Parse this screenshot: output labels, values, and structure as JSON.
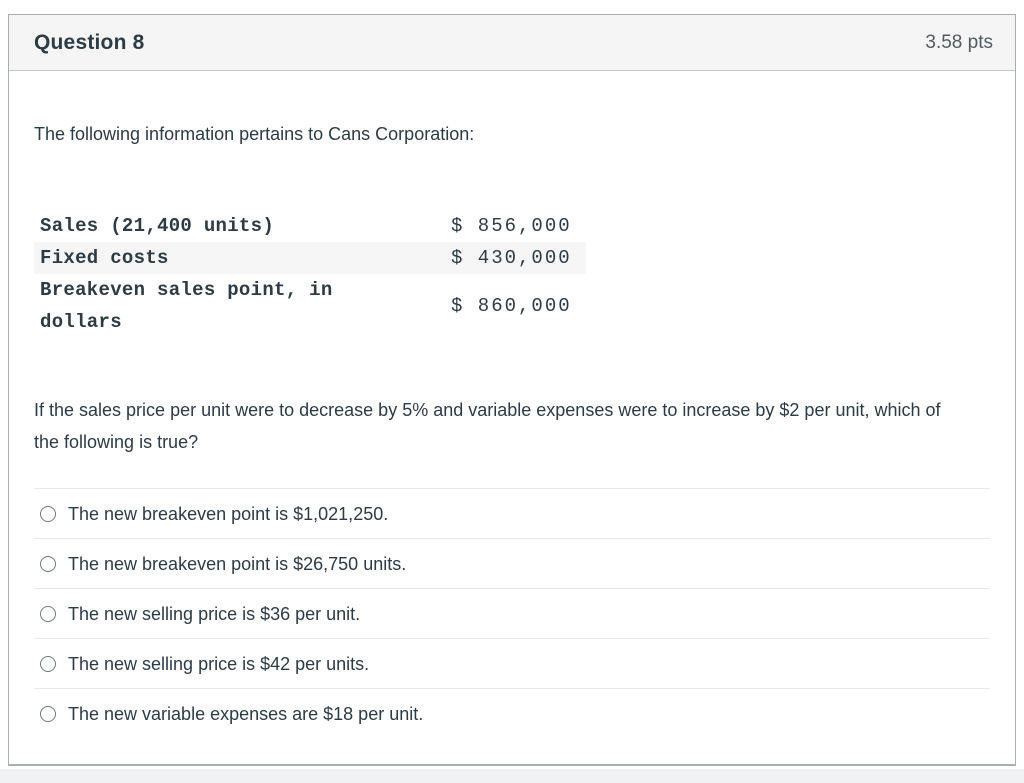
{
  "header": {
    "title": "Question 8",
    "points": "3.58 pts"
  },
  "intro": "The following information pertains to Cans Corporation:",
  "fin_table": {
    "rows": [
      {
        "label": "Sales (21,400 units)",
        "value": "$ 856,000",
        "striped": false
      },
      {
        "label": "Fixed costs",
        "value": "$ 430,000",
        "striped": true
      },
      {
        "label": "Breakeven sales point, in dollars",
        "value": "$ 860,000",
        "striped": false
      }
    ]
  },
  "question": "If the sales price per unit were to decrease by 5% and variable expenses were to increase by $2 per unit, which of the following is true?",
  "options": [
    {
      "label": "The new breakeven point is $1,021,250.",
      "selected": false
    },
    {
      "label": "The new breakeven point is $26,750 units.",
      "selected": false
    },
    {
      "label": "The new selling price is $36 per unit.",
      "selected": false
    },
    {
      "label": "The new selling price is $42 per units.",
      "selected": false
    },
    {
      "label": "The new variable expenses are $18 per unit.",
      "selected": false
    }
  ],
  "colors": {
    "text": "#2D3B45",
    "header_bg": "#F5F5F5",
    "box_border": "#A9AEB2",
    "stripe_bg": "#F6F6F7",
    "divider": "#E7E9EA",
    "points_text": "#535B61"
  }
}
